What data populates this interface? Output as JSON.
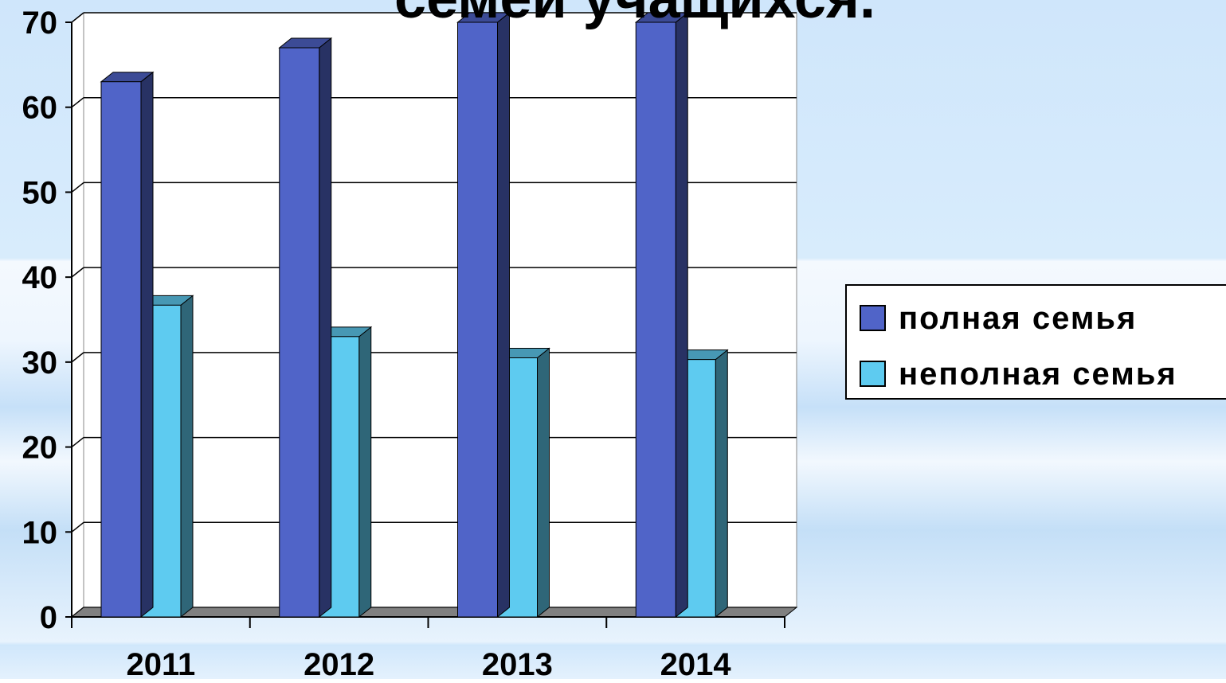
{
  "chart_data": {
    "type": "bar3d",
    "title": "семей учащихся.",
    "categories": [
      "2011",
      "2012",
      "2013",
      "2014"
    ],
    "series": [
      {
        "name": "полная семья",
        "color": "#5064c8",
        "values": [
          63,
          67,
          70,
          70
        ]
      },
      {
        "name": "неполная семья",
        "color": "#5ecbf0",
        "values": [
          36.7,
          33,
          30.5,
          30.3
        ]
      }
    ],
    "ylim": [
      0,
      70
    ],
    "yticks": [
      0,
      10,
      20,
      30,
      40,
      50,
      60,
      70
    ],
    "grid": true,
    "legend": "right"
  }
}
